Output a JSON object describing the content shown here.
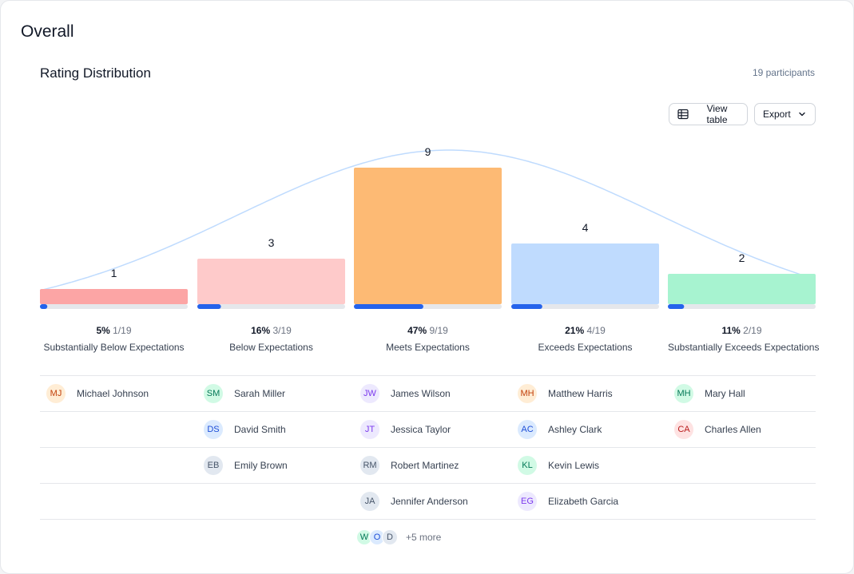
{
  "header": {
    "title": "Overall",
    "subtitle": "Rating Distribution",
    "participants": "19 participants",
    "view_table_label": "View table",
    "export_label": "Export"
  },
  "chart_data": {
    "type": "bar",
    "categories": [
      "Substantially Below Expectations",
      "Below Expectations",
      "Meets Expectations",
      "Exceeds Expectations",
      "Substantially Exceeds Expectations"
    ],
    "values": [
      1,
      3,
      9,
      4,
      2
    ],
    "percents": [
      "5%",
      "16%",
      "47%",
      "21%",
      "11%"
    ],
    "fractions": [
      "1/19",
      "3/19",
      "9/19",
      "4/19",
      "2/19"
    ],
    "progress": [
      0.05,
      0.16,
      0.47,
      0.21,
      0.11
    ],
    "colors": [
      "#fca5a5",
      "#fecaca",
      "#fdba74",
      "#bfdbfe",
      "#a7f3d0"
    ],
    "progress_color": "#2563eb",
    "track_color": "#e5e7eb",
    "curve_color": "#bfdbfe",
    "curve": "normal distribution overlay",
    "ylim": [
      0,
      9
    ],
    "grid": false,
    "legend": "none"
  },
  "columns": [
    {
      "people": [
        {
          "initials": "MJ",
          "name": "Michael Johnson",
          "color": "#c2410c",
          "bg": "#ffedd5"
        }
      ]
    },
    {
      "people": [
        {
          "initials": "SM",
          "name": "Sarah Miller",
          "color": "#047857",
          "bg": "#d1fae5"
        },
        {
          "initials": "DS",
          "name": "David Smith",
          "color": "#1d4ed8",
          "bg": "#dbeafe"
        },
        {
          "initials": "EB",
          "name": "Emily Brown",
          "color": "#475569",
          "bg": "#e2e8f0"
        }
      ]
    },
    {
      "people": [
        {
          "initials": "JW",
          "name": "James Wilson",
          "color": "#7c3aed",
          "bg": "#ede9fe"
        },
        {
          "initials": "JT",
          "name": "Jessica Taylor",
          "color": "#7c3aed",
          "bg": "#ede9fe"
        },
        {
          "initials": "RM",
          "name": "Robert Martinez",
          "color": "#475569",
          "bg": "#e2e8f0"
        },
        {
          "initials": "JA",
          "name": "Jennifer Anderson",
          "color": "#475569",
          "bg": "#e2e8f0"
        }
      ],
      "more": {
        "avatars": [
          {
            "initials": "W",
            "color": "#047857",
            "bg": "#d1fae5"
          },
          {
            "initials": "O",
            "color": "#1d4ed8",
            "bg": "#dbeafe"
          },
          {
            "initials": "D",
            "color": "#475569",
            "bg": "#e2e8f0"
          }
        ],
        "label": "+5 more"
      }
    },
    {
      "people": [
        {
          "initials": "MH",
          "name": "Matthew Harris",
          "color": "#c2410c",
          "bg": "#ffedd5"
        },
        {
          "initials": "AC",
          "name": "Ashley Clark",
          "color": "#1d4ed8",
          "bg": "#dbeafe"
        },
        {
          "initials": "KL",
          "name": "Kevin Lewis",
          "color": "#047857",
          "bg": "#d1fae5"
        },
        {
          "initials": "EG",
          "name": "Elizabeth Garcia",
          "color": "#7c3aed",
          "bg": "#ede9fe"
        }
      ]
    },
    {
      "people": [
        {
          "initials": "MH",
          "name": "Mary Hall",
          "color": "#047857",
          "bg": "#d1fae5"
        },
        {
          "initials": "CA",
          "name": "Charles Allen",
          "color": "#b91c1c",
          "bg": "#fee2e2"
        }
      ]
    }
  ]
}
